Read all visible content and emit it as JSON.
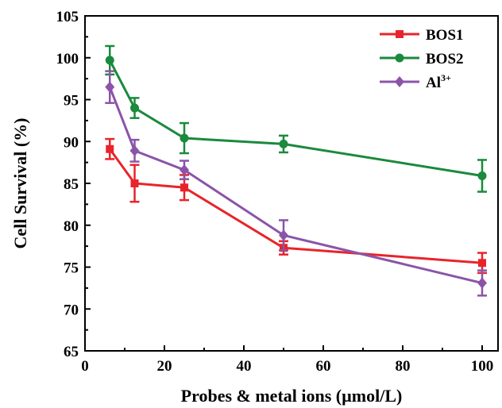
{
  "chart_data": {
    "type": "line",
    "xlabel": "Probes & metal ions (µmol/L)",
    "ylabel": "Cell Survival (%)",
    "xlim": [
      0,
      104
    ],
    "ylim": [
      65,
      105
    ],
    "xticks": [
      "0",
      "20",
      "40",
      "60",
      "80",
      "100"
    ],
    "yticks": [
      "65",
      "70",
      "75",
      "80",
      "85",
      "90",
      "95",
      "100",
      "105"
    ],
    "x": [
      6.25,
      12.5,
      25,
      50,
      100
    ],
    "legend_position": "top-right",
    "grid": false,
    "series": [
      {
        "name": "BOS1",
        "color": "#e8242a",
        "marker": "square",
        "values": [
          89.1,
          85.0,
          84.5,
          77.3,
          75.5
        ],
        "errors": [
          1.2,
          2.2,
          1.5,
          0.8,
          1.2
        ]
      },
      {
        "name": "BOS2",
        "color": "#1a8a3c",
        "marker": "circle",
        "values": [
          99.7,
          94.0,
          90.4,
          89.7,
          85.9
        ],
        "errors": [
          1.7,
          1.2,
          1.8,
          1.0,
          1.9
        ]
      },
      {
        "name": "Al",
        "name_sup": "3+",
        "color": "#8b54a8",
        "marker": "diamond",
        "values": [
          96.5,
          88.9,
          86.6,
          78.8,
          73.1
        ],
        "errors": [
          1.9,
          1.3,
          1.1,
          1.8,
          1.5
        ]
      }
    ]
  }
}
